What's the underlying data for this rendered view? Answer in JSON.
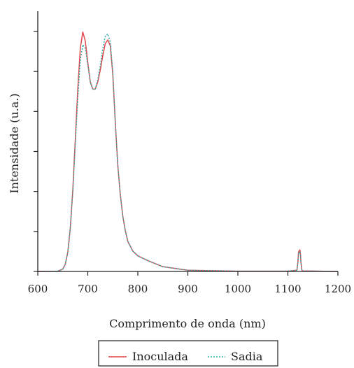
{
  "chart_data": {
    "type": "line",
    "title": "",
    "xlabel": "Comprimento de onda (nm)",
    "ylabel": "Intensidade (u.a.)",
    "xlim": [
      600,
      1200
    ],
    "ylim": [
      0,
      1.0
    ],
    "x_ticks": [
      600,
      700,
      800,
      900,
      1000,
      1100,
      1200
    ],
    "y_tick_count": 7,
    "y_tick_labels_shown": false,
    "grid": false,
    "legend_position": "bottom-center",
    "series": [
      {
        "name": "Inoculada",
        "color": "#e0474c",
        "style": "solid",
        "x": [
          600,
          640,
          650,
          655,
          660,
          665,
          670,
          675,
          680,
          685,
          690,
          695,
          700,
          705,
          710,
          715,
          720,
          725,
          730,
          735,
          740,
          745,
          750,
          755,
          760,
          765,
          770,
          775,
          780,
          790,
          800,
          820,
          850,
          900,
          1000,
          1100,
          1118,
          1120,
          1121,
          1122,
          1123,
          1124,
          1125,
          1126,
          1128,
          1130,
          1200
        ],
        "y": [
          0.0,
          0.001,
          0.01,
          0.03,
          0.08,
          0.18,
          0.34,
          0.55,
          0.76,
          0.93,
          0.998,
          0.96,
          0.87,
          0.79,
          0.76,
          0.76,
          0.79,
          0.84,
          0.9,
          0.95,
          0.965,
          0.94,
          0.82,
          0.62,
          0.44,
          0.32,
          0.23,
          0.17,
          0.125,
          0.085,
          0.065,
          0.045,
          0.02,
          0.005,
          0.001,
          0.001,
          0.005,
          0.04,
          0.075,
          0.085,
          0.085,
          0.09,
          0.075,
          0.04,
          0.005,
          0.002,
          0.0
        ]
      },
      {
        "name": "Sadia",
        "color": "#3aafa9",
        "style": "dotted",
        "x": [
          600,
          640,
          650,
          655,
          660,
          665,
          670,
          675,
          680,
          685,
          690,
          695,
          700,
          705,
          710,
          715,
          720,
          725,
          730,
          735,
          740,
          745,
          750,
          755,
          760,
          765,
          770,
          775,
          780,
          790,
          800,
          820,
          850,
          900,
          1000,
          1100,
          1118,
          1120,
          1121,
          1122,
          1123,
          1124,
          1125,
          1126,
          1128,
          1130,
          1200
        ],
        "y": [
          0.0,
          0.001,
          0.01,
          0.03,
          0.08,
          0.18,
          0.33,
          0.53,
          0.72,
          0.88,
          0.945,
          0.93,
          0.86,
          0.79,
          0.76,
          0.76,
          0.8,
          0.86,
          0.93,
          0.98,
          0.99,
          0.955,
          0.83,
          0.62,
          0.44,
          0.32,
          0.23,
          0.17,
          0.125,
          0.085,
          0.065,
          0.045,
          0.02,
          0.005,
          0.001,
          0.001,
          0.005,
          0.035,
          0.065,
          0.08,
          0.078,
          0.085,
          0.07,
          0.035,
          0.005,
          0.002,
          0.0
        ]
      }
    ]
  }
}
